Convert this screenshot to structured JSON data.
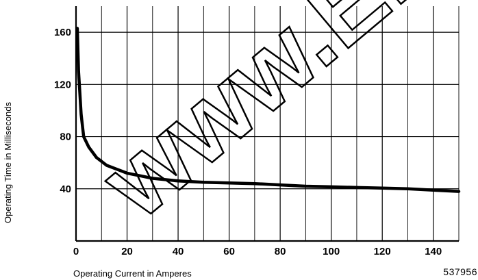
{
  "chart_data": {
    "type": "line",
    "xlabel": "Operating Current in Amperes",
    "ylabel": "Operating Time in Milliseconds",
    "xlim": [
      0,
      150
    ],
    "ylim": [
      0,
      180
    ],
    "x_ticks": [
      0,
      20,
      40,
      60,
      80,
      100,
      120,
      140
    ],
    "y_ticks": [
      40,
      80,
      120,
      160
    ],
    "grid": true,
    "series": [
      {
        "x": [
          0.5,
          1,
          2,
          3,
          5,
          8,
          12,
          16,
          20,
          25,
          30,
          40,
          50,
          60,
          70,
          80,
          90,
          100,
          110,
          120,
          130,
          140,
          150
        ],
        "y": [
          163,
          130,
          97,
          80,
          72,
          64,
          58,
          55,
          52,
          50,
          48,
          46,
          45,
          44.5,
          44,
          43,
          42,
          41.5,
          41,
          40.5,
          40,
          39,
          38
        ]
      }
    ],
    "color": "#000000"
  },
  "figure_number": "537956",
  "watermark_text": "www.Elec"
}
